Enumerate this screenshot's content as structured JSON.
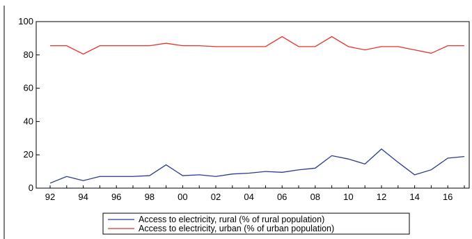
{
  "chart_data": {
    "type": "line",
    "title": "",
    "xlabel": "",
    "ylabel": "",
    "ylim": [
      0,
      100
    ],
    "yticks": [
      0,
      20,
      40,
      60,
      80,
      100
    ],
    "x": [
      1992,
      1993,
      1994,
      1995,
      1996,
      1997,
      1998,
      1999,
      2000,
      2001,
      2002,
      2003,
      2004,
      2005,
      2006,
      2007,
      2008,
      2009,
      2010,
      2011,
      2012,
      2013,
      2014,
      2015,
      2016,
      2017
    ],
    "xtick_labels": [
      "92",
      "94",
      "96",
      "98",
      "00",
      "02",
      "04",
      "06",
      "08",
      "10",
      "12",
      "14",
      "16"
    ],
    "xtick_years": [
      1992,
      1994,
      1996,
      1998,
      2000,
      2002,
      2004,
      2006,
      2008,
      2010,
      2012,
      2014,
      2016
    ],
    "grid": false,
    "legend_position": "bottom-center",
    "series": [
      {
        "name": "Access to electricity, rural (% of rural population)",
        "color": "#2b3a8c",
        "values": [
          3,
          7,
          4.5,
          7,
          7,
          7,
          7.5,
          14,
          7.5,
          8,
          7,
          8.5,
          9,
          10,
          9.5,
          11,
          12,
          19.5,
          17.5,
          14.5,
          23.5,
          15.5,
          8,
          11,
          18,
          19
        ]
      },
      {
        "name": "Access to electricity, urban (% of urban population)",
        "color": "#e8332a",
        "values": [
          85.5,
          85.5,
          80.5,
          85.5,
          85.5,
          85.5,
          85.5,
          87,
          85.5,
          85.5,
          85,
          85,
          85,
          85,
          91,
          85,
          85,
          91,
          85,
          83,
          85,
          85,
          83,
          81,
          85.5,
          85.5
        ]
      }
    ]
  }
}
